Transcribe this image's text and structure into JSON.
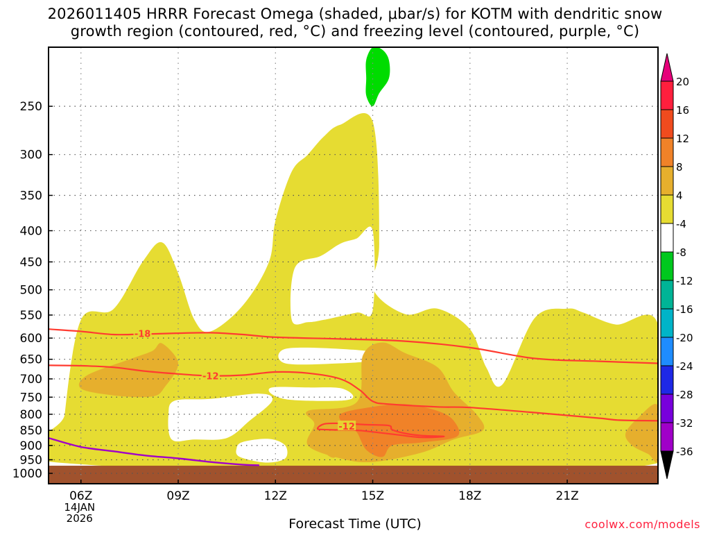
{
  "title_line1": "2026011405 HRRR Forecast Omega (shaded, μbar/s) for KOTM with dendritic snow",
  "title_line2": "growth region (contoured, red, °C) and freezing level (contoured, purple, °C)",
  "credit": "coolwx.com/models",
  "colors": {
    "omega_4_8": "#e6dc32",
    "omega_8_12": "#e6af2d",
    "omega_12_16": "#f08228",
    "omega_neg4_neg8": "#00dc00",
    "dgz_contour": "#ff3b30",
    "freezing_level": "#a000c8",
    "ground": "#a0522d"
  },
  "chart_data": {
    "type": "heatmap",
    "xlabel": "Forecast Time (UTC)",
    "x_ticks": [
      "06Z",
      "09Z",
      "12Z",
      "15Z",
      "18Z",
      "21Z"
    ],
    "x_tick_hours": [
      6,
      9,
      12,
      15,
      18,
      21
    ],
    "xlim_hours": [
      5.0,
      23.8
    ],
    "date_label": [
      "14JAN",
      "2026"
    ],
    "y_ticks": [
      250,
      300,
      350,
      400,
      450,
      500,
      550,
      600,
      650,
      700,
      750,
      800,
      850,
      900,
      950,
      1000
    ],
    "yscale": "log",
    "ylim_hPa": [
      200,
      1040
    ],
    "grid": true,
    "colorbar": {
      "levels": [
        20,
        16,
        12,
        8,
        4,
        -4,
        -8,
        -12,
        -16,
        -20,
        -24,
        -28,
        -32,
        -36
      ],
      "colors": [
        "#ff1f3d",
        "#f04b1e",
        "#f08228",
        "#e6af2d",
        "#e6dc32",
        "#ffffff",
        "#00c81e",
        "#00b496",
        "#00b4c8",
        "#1e8cff",
        "#1e28e6",
        "#7800dc",
        "#a000c8",
        "#a0a0a0"
      ],
      "top_arrow_color": "#e6007a",
      "bottom_arrow_color": "#000000"
    },
    "shaded_regions": [
      {
        "level": "4 to 8",
        "points": [
          [
            5.5,
            962
          ],
          [
            5.5,
            800
          ],
          [
            6.0,
            560
          ],
          [
            7.0,
            538
          ],
          [
            7.9,
            450
          ],
          [
            8.5,
            418
          ],
          [
            9.0,
            470
          ],
          [
            9.5,
            560
          ],
          [
            10.0,
            585
          ],
          [
            11.0,
            530
          ],
          [
            11.8,
            450
          ],
          [
            12.0,
            385
          ],
          [
            12.5,
            320
          ],
          [
            13.0,
            300
          ],
          [
            13.5,
            280
          ],
          [
            14.0,
            268
          ],
          [
            15.0,
            265
          ],
          [
            15.2,
            420
          ],
          [
            15.0,
            497
          ],
          [
            16.0,
            548
          ],
          [
            17.0,
            537
          ],
          [
            18.0,
            580
          ],
          [
            18.5,
            670
          ],
          [
            19.0,
            715
          ],
          [
            20.0,
            556
          ],
          [
            21.0,
            537
          ],
          [
            21.5,
            545
          ],
          [
            22.5,
            570
          ],
          [
            23.8,
            570
          ],
          [
            23.8,
            962
          ]
        ]
      },
      {
        "level": "4 to 8",
        "points": [
          [
            14.0,
            340
          ],
          [
            14.5,
            320
          ],
          [
            14.9,
            312
          ],
          [
            15.1,
            330
          ],
          [
            15.0,
            390
          ],
          [
            14.5,
            395
          ],
          [
            14.0,
            360
          ]
        ]
      },
      {
        "level": "8 to 12",
        "points": [
          [
            6.0,
            726
          ],
          [
            6.2,
            690
          ],
          [
            7.5,
            650
          ],
          [
            8.2,
            630
          ],
          [
            8.5,
            612
          ],
          [
            9.0,
            660
          ],
          [
            8.6,
            720
          ],
          [
            8.2,
            748
          ],
          [
            7.0,
            745
          ]
        ]
      },
      {
        "level": "8 to 12",
        "points": [
          [
            13.0,
            790
          ],
          [
            14.5,
            765
          ],
          [
            14.7,
            640
          ],
          [
            15.3,
            610
          ],
          [
            16.0,
            635
          ],
          [
            17.0,
            670
          ],
          [
            17.5,
            735
          ],
          [
            18.2,
            800
          ],
          [
            18.4,
            850
          ],
          [
            17.5,
            880
          ],
          [
            16.5,
            925
          ],
          [
            15.0,
            958
          ],
          [
            14.0,
            945
          ],
          [
            13.0,
            900
          ],
          [
            13.2,
            830
          ]
        ]
      },
      {
        "level": "8 to 12",
        "points": [
          [
            22.8,
            860
          ],
          [
            23.2,
            810
          ],
          [
            23.8,
            775
          ],
          [
            23.8,
            950
          ],
          [
            23.5,
            930
          ],
          [
            23.0,
            900
          ]
        ]
      },
      {
        "level": "8 to 12",
        "points": [
          [
            13.7,
            918
          ],
          [
            13.9,
            930
          ],
          [
            13.8,
            943
          ],
          [
            13.6,
            932
          ]
        ]
      },
      {
        "level": "12 to 16",
        "points": [
          [
            14.0,
            800
          ],
          [
            15.0,
            778
          ],
          [
            16.0,
            770
          ],
          [
            17.0,
            790
          ],
          [
            17.5,
            820
          ],
          [
            17.6,
            870
          ],
          [
            16.5,
            890
          ],
          [
            15.6,
            900
          ],
          [
            15.3,
            940
          ],
          [
            14.8,
            915
          ],
          [
            14.5,
            855
          ],
          [
            14.2,
            840
          ]
        ]
      }
    ],
    "white_holes": [
      {
        "points": [
          [
            10.0,
            755
          ],
          [
            11.5,
            740
          ],
          [
            11.9,
            760
          ],
          [
            11.2,
            820
          ],
          [
            10.5,
            875
          ],
          [
            9.5,
            880
          ],
          [
            8.8,
            880
          ],
          [
            8.7,
            800
          ],
          [
            8.9,
            760
          ]
        ]
      },
      {
        "points": [
          [
            11.0,
            888
          ],
          [
            11.8,
            878
          ],
          [
            12.3,
            900
          ],
          [
            12.3,
            945
          ],
          [
            11.7,
            960
          ],
          [
            10.9,
            940
          ],
          [
            10.8,
            910
          ]
        ]
      },
      {
        "points": [
          [
            11.9,
            723
          ],
          [
            13.0,
            723
          ],
          [
            14.0,
            725
          ],
          [
            14.4,
            748
          ],
          [
            14.0,
            760
          ],
          [
            12.5,
            758
          ],
          [
            11.9,
            742
          ]
        ]
      },
      {
        "points": [
          [
            12.3,
            625
          ],
          [
            14.0,
            625
          ],
          [
            15.5,
            637
          ],
          [
            15.5,
            650
          ],
          [
            14.0,
            660
          ],
          [
            12.3,
            660
          ]
        ]
      },
      {
        "points": [
          [
            12.6,
            460
          ],
          [
            13.4,
            440
          ],
          [
            14.0,
            420
          ],
          [
            14.5,
            412
          ],
          [
            15.0,
            400
          ],
          [
            15.0,
            540
          ],
          [
            14.5,
            545
          ],
          [
            13.5,
            560
          ],
          [
            13.0,
            565
          ],
          [
            12.5,
            560
          ]
        ]
      }
    ],
    "small_regions": [
      {
        "level": "-4 to -8",
        "points": [
          [
            14.8,
            210
          ],
          [
            15.0,
            200
          ],
          [
            15.3,
            202
          ],
          [
            15.5,
            210
          ],
          [
            15.5,
            225
          ],
          [
            15.2,
            238
          ],
          [
            15.0,
            250
          ],
          [
            14.8,
            240
          ],
          [
            14.8,
            225
          ]
        ]
      }
    ],
    "dgz_contours": [
      {
        "label": "-18",
        "label_at": [
          7.9,
          590
        ],
        "points": [
          [
            5.0,
            580
          ],
          [
            6.0,
            585
          ],
          [
            7.0,
            592
          ],
          [
            8.0,
            591
          ],
          [
            9.0,
            589
          ],
          [
            10.0,
            588
          ],
          [
            11.0,
            592
          ],
          [
            12.0,
            598
          ],
          [
            14.0,
            602
          ],
          [
            16.0,
            607
          ],
          [
            18.0,
            622
          ],
          [
            20.0,
            648
          ],
          [
            22.0,
            655
          ],
          [
            23.8,
            660
          ]
        ]
      },
      {
        "label": "-12",
        "label_at": [
          10.0,
          692
        ],
        "points": [
          [
            5.0,
            665
          ],
          [
            6.0,
            666
          ],
          [
            7.0,
            670
          ],
          [
            8.0,
            680
          ],
          [
            9.0,
            687
          ],
          [
            10.0,
            692
          ],
          [
            11.0,
            690
          ],
          [
            12.0,
            682
          ],
          [
            13.0,
            685
          ],
          [
            14.0,
            700
          ],
          [
            14.6,
            730
          ],
          [
            15.0,
            762
          ],
          [
            15.5,
            770
          ],
          [
            17.0,
            778
          ],
          [
            18.0,
            780
          ],
          [
            20.0,
            795
          ],
          [
            22.0,
            812
          ],
          [
            22.6,
            818
          ],
          [
            23.8,
            820
          ]
        ]
      },
      {
        "label": "-12",
        "label_at": [
          14.2,
          837
        ],
        "points": [
          [
            13.3,
            845
          ],
          [
            13.5,
            830
          ],
          [
            14.0,
            828
          ],
          [
            14.8,
            832
          ],
          [
            15.5,
            835
          ],
          [
            15.6,
            848
          ],
          [
            16.0,
            860
          ],
          [
            16.5,
            867
          ],
          [
            17.2,
            870
          ],
          [
            16.5,
            873
          ],
          [
            15.8,
            865
          ],
          [
            15.0,
            855
          ],
          [
            14.5,
            850
          ],
          [
            13.6,
            848
          ],
          [
            13.3,
            845
          ]
        ]
      }
    ],
    "freezing_level_contour": {
      "points": [
        [
          5.0,
          875
        ],
        [
          6.0,
          905
        ],
        [
          7.0,
          920
        ],
        [
          8.0,
          935
        ],
        [
          9.0,
          945
        ],
        [
          10.0,
          958
        ],
        [
          11.0,
          968
        ],
        [
          11.5,
          970
        ]
      ]
    }
  }
}
